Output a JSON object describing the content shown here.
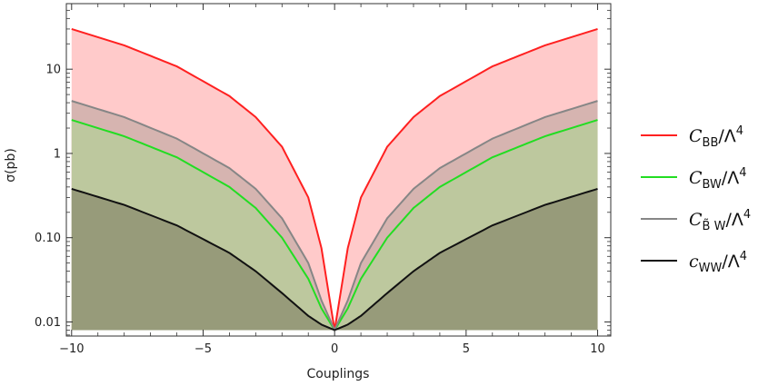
{
  "chart_data": {
    "type": "area",
    "xlabel": "Couplings",
    "ylabel": "σ(pb)",
    "xlim": [
      -10.2,
      10.5
    ],
    "ylim": [
      0.0068,
      60
    ],
    "yscale": "log",
    "grid": false,
    "legend_position": "right",
    "x_ticks": [
      -10,
      -5,
      0,
      5,
      10
    ],
    "x_tick_labels": [
      "−10",
      "−5",
      "0",
      "5",
      "10"
    ],
    "y_ticks": [
      0.01,
      0.1,
      1,
      10
    ],
    "y_tick_labels": [
      "0.01",
      "0.10",
      "1",
      "10"
    ],
    "x": [
      -10,
      -8,
      -6,
      -4,
      -3,
      -2,
      -1,
      -0.5,
      0,
      0.5,
      1,
      2,
      3,
      4,
      6,
      8,
      10
    ],
    "series": [
      {
        "name": "C_BB/Λ^4",
        "color": "#ff2020",
        "fill": "#ffcaca",
        "values": [
          30,
          19.2,
          10.8,
          4.8,
          2.7,
          1.2,
          0.3,
          0.075,
          0.008,
          0.075,
          0.3,
          1.2,
          2.7,
          4.8,
          10.8,
          19.2,
          30
        ]
      },
      {
        "name": "C_BW/Λ^4",
        "color": "#22dd22",
        "fill": "#bdc89e",
        "values": [
          2.5,
          1.6,
          0.9,
          0.4,
          0.225,
          0.1,
          0.0325,
          0.0145,
          0.008,
          0.0145,
          0.0325,
          0.1,
          0.225,
          0.4,
          0.9,
          1.6,
          2.5
        ]
      },
      {
        "name": "C_B̃W/Λ^4",
        "color": "#868686",
        "fill": "#d6b4b0",
        "values": [
          4.2,
          2.7,
          1.5,
          0.67,
          0.38,
          0.17,
          0.05,
          0.018,
          0.008,
          0.018,
          0.05,
          0.17,
          0.38,
          0.67,
          1.5,
          2.7,
          4.2
        ]
      },
      {
        "name": "c_WW/Λ^4",
        "color": "#111111",
        "fill": "#979b7a",
        "values": [
          0.38,
          0.245,
          0.14,
          0.066,
          0.04,
          0.022,
          0.0118,
          0.0093,
          0.008,
          0.0093,
          0.0118,
          0.022,
          0.04,
          0.066,
          0.14,
          0.245,
          0.38
        ]
      }
    ]
  },
  "legend": {
    "items": [
      {
        "main": "C",
        "sub": "BB",
        "tail": "/Λ",
        "sup": "4",
        "color": "#ff2020"
      },
      {
        "main": "C",
        "sub": "BW",
        "tail": "/Λ",
        "sup": "4",
        "color": "#22dd22"
      },
      {
        "main": "C",
        "sub": "B̃ W",
        "tail": "/Λ",
        "sup": "4",
        "color": "#868686"
      },
      {
        "main": "c",
        "sub": "WW",
        "tail": "/Λ",
        "sup": "4",
        "color": "#111111"
      }
    ]
  }
}
